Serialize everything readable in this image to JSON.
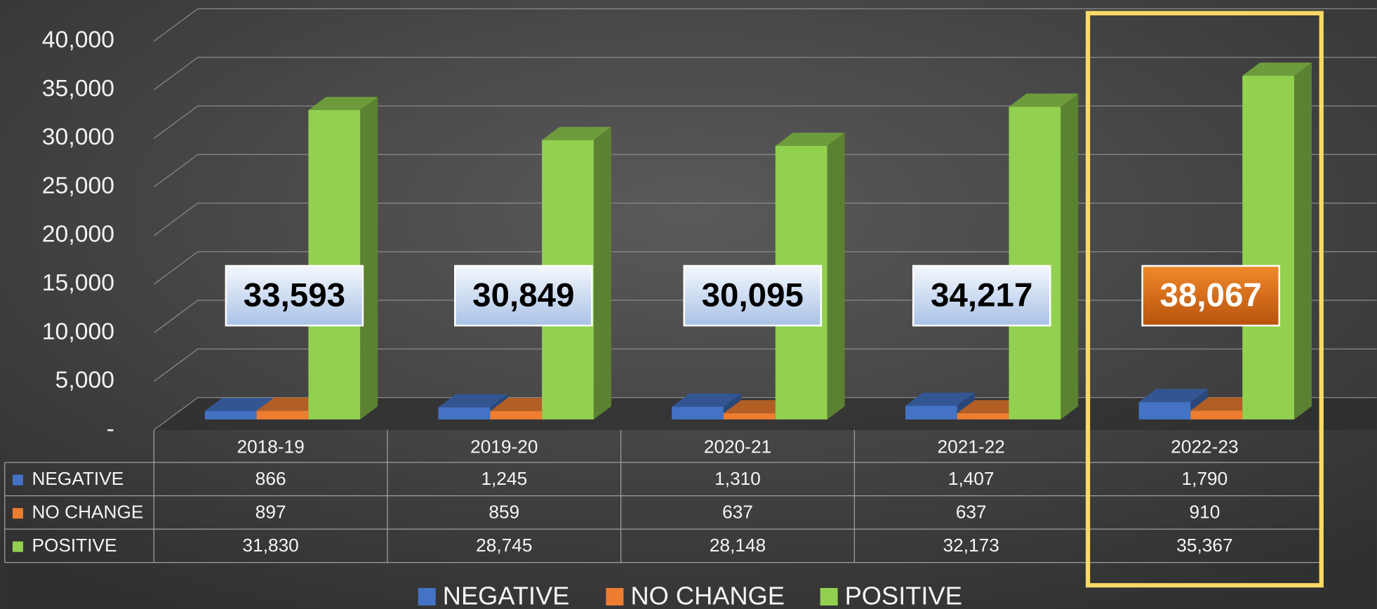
{
  "chart_data": {
    "type": "bar3d",
    "categories": [
      "2018-19",
      "2019-20",
      "2020-21",
      "2021-22",
      "2022-23"
    ],
    "series": [
      {
        "name": "NEGATIVE",
        "color": "#4472c4",
        "values": [
          866,
          1245,
          1310,
          1407,
          1790
        ],
        "value_labels": [
          "866",
          "1,245",
          "1,310",
          "1,407",
          "1,790"
        ]
      },
      {
        "name": "NO CHANGE",
        "color": "#ed7d31",
        "values": [
          897,
          859,
          637,
          637,
          910
        ],
        "value_labels": [
          "897",
          "859",
          "637",
          "637",
          "910"
        ]
      },
      {
        "name": "POSITIVE",
        "color": "#92d050",
        "values": [
          31830,
          28745,
          28148,
          32173,
          35367
        ],
        "value_labels": [
          "31,830",
          "28,745",
          "28,148",
          "32,173",
          "35,367"
        ]
      }
    ],
    "totals": [
      33593,
      30849,
      30095,
      34217,
      38067
    ],
    "total_labels": [
      "33,593",
      "30,849",
      "30,095",
      "34,217",
      "38,067"
    ],
    "highlight_category": "2022-23",
    "ylim": [
      0,
      40000
    ],
    "yticks": [
      {
        "value": 0,
        "label": "-"
      },
      {
        "value": 5000,
        "label": "5,000"
      },
      {
        "value": 10000,
        "label": "10,000"
      },
      {
        "value": 15000,
        "label": "15,000"
      },
      {
        "value": 20000,
        "label": "20,000"
      },
      {
        "value": 25000,
        "label": "25,000"
      },
      {
        "value": 30000,
        "label": "30,000"
      },
      {
        "value": 35000,
        "label": "35,000"
      },
      {
        "value": 40000,
        "label": "40,000"
      }
    ],
    "grid": true
  }
}
